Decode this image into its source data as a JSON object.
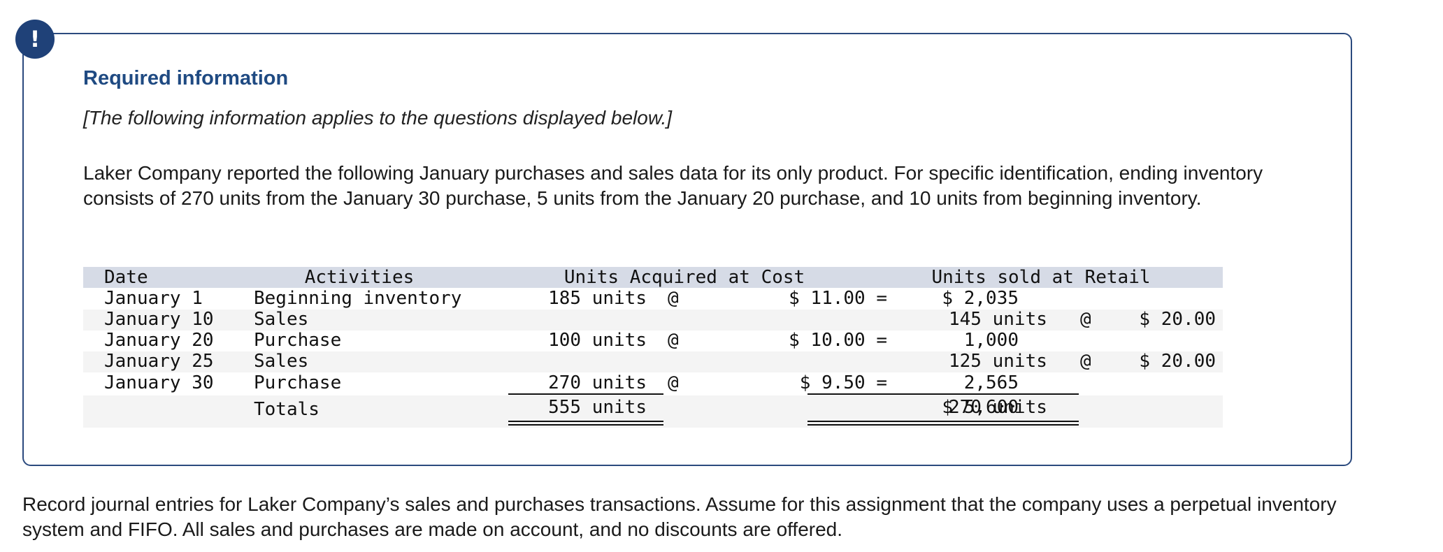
{
  "alert": {
    "symbol": "!"
  },
  "title": "Required information",
  "note": "[The following information applies to the questions displayed below.]",
  "description": "Laker Company reported the following January purchases and sales data for its only product. For specific identification, ending inventory consists of 270 units from the January 30 purchase, 5 units from the January 20 purchase, and 10 units from beginning inventory.",
  "table": {
    "headers": {
      "date": "Date",
      "activities": "Activities",
      "acquired": "Units Acquired at Cost",
      "sold": "Units sold at Retail"
    },
    "rows": [
      {
        "date": "January 1",
        "activity": "Beginning inventory",
        "acq_units": "185 units",
        "acq_at": "@",
        "acq_cost": "$ 11.00 =",
        "acq_total": "$ 2,035",
        "sold_units": "",
        "sold_at": "",
        "sold_price": ""
      },
      {
        "date": "January 10",
        "activity": "Sales",
        "acq_units": "",
        "acq_at": "",
        "acq_cost": "",
        "acq_total": "",
        "sold_units": "145 units",
        "sold_at": "@",
        "sold_price": "$ 20.00"
      },
      {
        "date": "January 20",
        "activity": "Purchase",
        "acq_units": "100 units",
        "acq_at": "@",
        "acq_cost": "$ 10.00 =",
        "acq_total": "1,000",
        "sold_units": "",
        "sold_at": "",
        "sold_price": ""
      },
      {
        "date": "January 25",
        "activity": "Sales",
        "acq_units": "",
        "acq_at": "",
        "acq_cost": "",
        "acq_total": "",
        "sold_units": "125 units",
        "sold_at": "@",
        "sold_price": "$ 20.00"
      },
      {
        "date": "January 30",
        "activity": "Purchase",
        "acq_units": "270 units",
        "acq_at": "@",
        "acq_cost": "$ 9.50 =",
        "acq_total": "2,565",
        "sold_units": "",
        "sold_at": "",
        "sold_price": ""
      }
    ],
    "totals": {
      "label": "Totals",
      "acq_units": "555 units",
      "acq_total": "$ 5,600",
      "sold_units": "270 units"
    }
  },
  "instructions": "Record journal entries for Laker Company’s sales and purchases transactions. Assume for this assignment that the company uses a perpetual inventory system and FIFO. All sales and purchases are made on account, and no discounts are offered."
}
